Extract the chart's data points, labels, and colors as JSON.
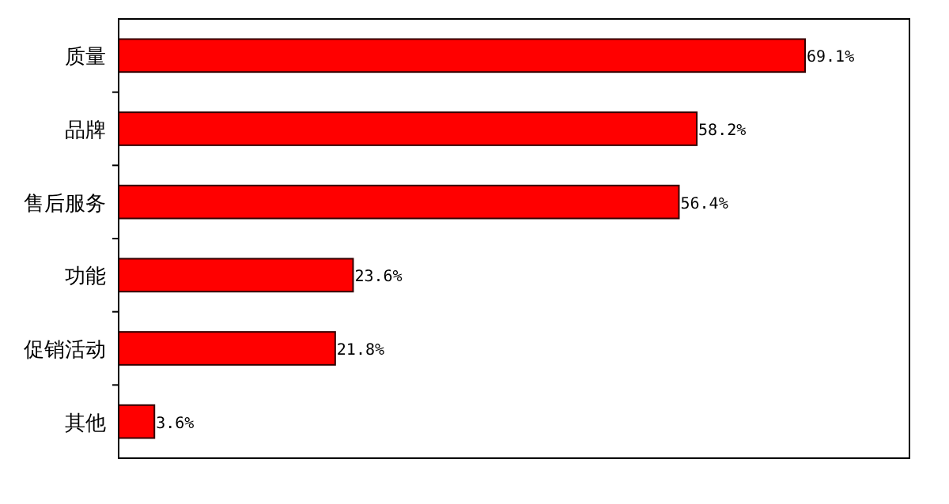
{
  "chart_data": {
    "type": "bar",
    "orientation": "horizontal",
    "categories": [
      "质量",
      "品牌",
      "售后服务",
      "功能",
      "促销活动",
      "其他"
    ],
    "values": [
      69.1,
      58.2,
      56.4,
      23.6,
      21.8,
      3.6
    ],
    "value_labels": [
      "69.1%",
      "58.2%",
      "56.4%",
      "23.6%",
      "21.8%",
      "3.6%"
    ],
    "color": "#ff0000"
  }
}
